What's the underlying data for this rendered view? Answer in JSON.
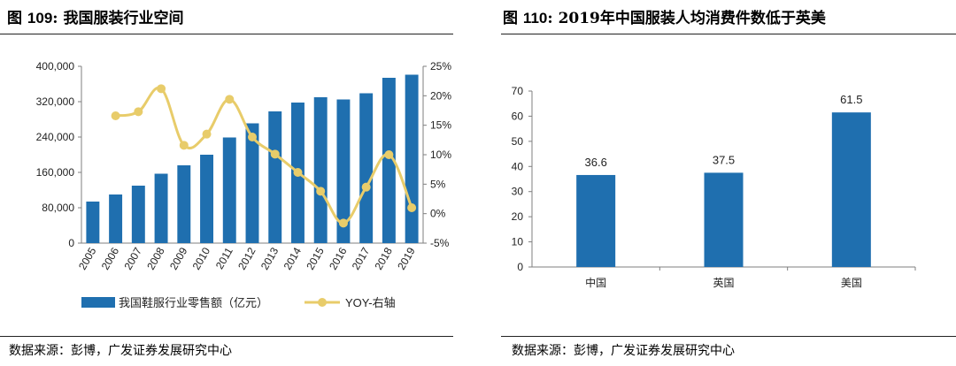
{
  "left": {
    "fig_label": "图",
    "fig_number": "109",
    "fig_sep": ":",
    "fig_title": "我国服装行业空间",
    "source": "数据来源：彭博，广发证券发展研究中心"
  },
  "right": {
    "fig_label": "图",
    "fig_number": "110",
    "fig_sep": ":",
    "fig_title": "2019年中国服装人均消费件数低于英美",
    "source": "数据来源：彭博，广发证券发展研究中心"
  },
  "colors": {
    "bar": "#1f6faf",
    "line": "#e8cc6a",
    "axis": "#7f7f7f"
  },
  "chart_data": [
    {
      "type": "bar+line",
      "title": "我国服装行业空间",
      "categories": [
        "2005",
        "2006",
        "2007",
        "2008",
        "2009",
        "2010",
        "2011",
        "2012",
        "2013",
        "2014",
        "2015",
        "2016",
        "2017",
        "2018",
        "2019"
      ],
      "series": [
        {
          "name": "我国鞋服行业零售额（亿元）",
          "type": "bar",
          "axis": "left",
          "values": [
            94000,
            110000,
            130000,
            157000,
            176000,
            200000,
            239000,
            271000,
            298000,
            318000,
            330000,
            325000,
            339000,
            374000,
            381000
          ]
        },
        {
          "name": "YOY-右轴",
          "type": "line",
          "axis": "right",
          "values": [
            null,
            16.6,
            17.3,
            21.2,
            11.6,
            13.5,
            19.4,
            13.0,
            10.1,
            7.0,
            3.8,
            -1.6,
            4.5,
            10.0,
            1.0
          ]
        }
      ],
      "y_left": {
        "ylim": [
          0,
          400000
        ],
        "ticks": [
          "0",
          "80,000",
          "160,000",
          "240,000",
          "320,000",
          "400,000"
        ]
      },
      "y_right": {
        "ylim": [
          -5,
          25
        ],
        "ticks": [
          "-5%",
          "0%",
          "5%",
          "10%",
          "15%",
          "20%",
          "25%"
        ]
      },
      "legend_position": "bottom"
    },
    {
      "type": "bar",
      "title": "2019年中国服装人均消费件数低于英美",
      "categories": [
        "中国",
        "英国",
        "美国"
      ],
      "values": [
        36.6,
        37.5,
        61.5
      ],
      "data_labels": [
        "36.6",
        "37.5",
        "61.5"
      ],
      "ylim": [
        0,
        70
      ],
      "y_ticks": [
        "0",
        "10",
        "20",
        "30",
        "40",
        "50",
        "60",
        "70"
      ],
      "grid": false
    }
  ]
}
